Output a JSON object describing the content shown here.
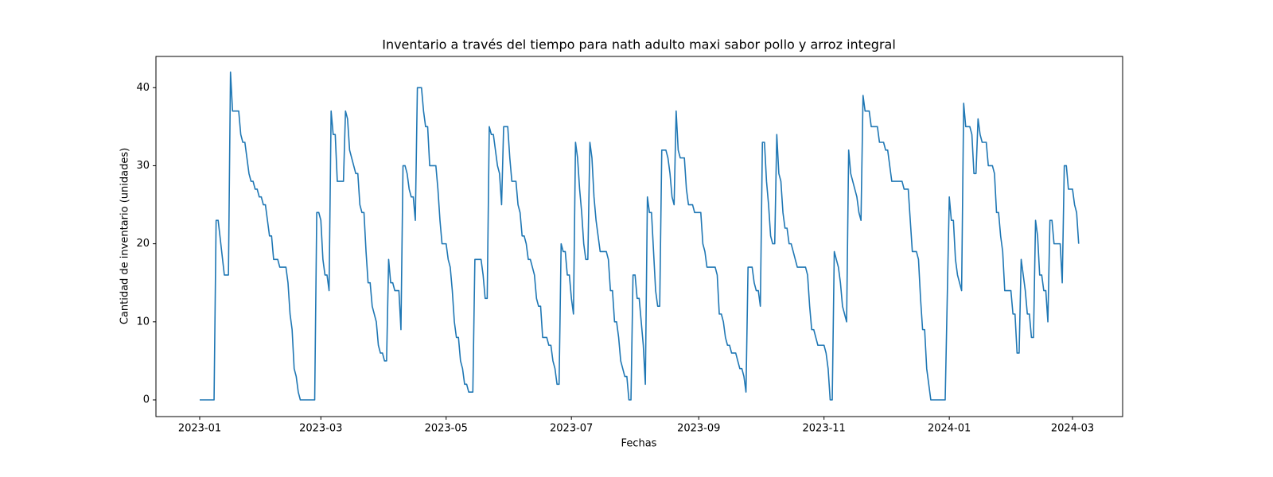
{
  "chart_data": {
    "type": "line",
    "title": "Inventario a través del tiempo para nath adulto maxi sabor pollo y arroz integral",
    "x_label": "Fechas",
    "y_label": "Cantidad de inventario (unidades)",
    "xlim": [
      -21.3,
      449.4
    ],
    "ylim": [
      -2.14,
      44.0
    ],
    "xticks": [
      {
        "value": 0,
        "label": "2023-01"
      },
      {
        "value": 59,
        "label": "2023-03"
      },
      {
        "value": 120,
        "label": "2023-05"
      },
      {
        "value": 181,
        "label": "2023-07"
      },
      {
        "value": 243,
        "label": "2023-09"
      },
      {
        "value": 304,
        "label": "2023-11"
      },
      {
        "value": 365,
        "label": "2024-01"
      },
      {
        "value": 425,
        "label": "2024-03"
      }
    ],
    "yticks": [
      0,
      10,
      20,
      30,
      40
    ],
    "grid": false,
    "x": [
      0,
      7,
      8,
      9,
      12,
      14,
      15,
      16,
      19,
      20,
      21,
      22,
      24,
      25,
      26,
      27,
      28,
      29,
      30,
      31,
      32,
      34,
      35,
      36,
      38,
      39,
      42,
      43,
      44,
      45,
      46,
      47,
      48,
      49,
      56,
      57,
      58,
      59,
      60,
      61,
      62,
      63,
      64,
      65,
      66,
      67,
      70,
      71,
      72,
      73,
      75,
      76,
      77,
      78,
      79,
      80,
      81,
      82,
      83,
      84,
      86,
      87,
      88,
      89,
      90,
      91,
      92,
      93,
      94,
      95,
      97,
      98,
      99,
      100,
      101,
      102,
      103,
      104,
      105,
      106,
      108,
      109,
      110,
      111,
      112,
      115,
      116,
      117,
      118,
      120,
      121,
      122,
      123,
      124,
      125,
      126,
      127,
      128,
      129,
      130,
      131,
      133,
      134,
      137,
      138,
      139,
      140,
      141,
      142,
      143,
      145,
      146,
      147,
      148,
      150,
      151,
      152,
      154,
      155,
      156,
      157,
      158,
      159,
      160,
      161,
      162,
      163,
      164,
      165,
      166,
      167,
      169,
      170,
      171,
      172,
      173,
      174,
      175,
      176,
      177,
      178,
      179,
      180,
      181,
      182,
      183,
      184,
      185,
      186,
      187,
      188,
      189,
      190,
      191,
      192,
      193,
      194,
      195,
      198,
      199,
      200,
      201,
      202,
      203,
      204,
      205,
      206,
      207,
      208,
      209,
      210,
      211,
      212,
      213,
      214,
      215,
      216,
      217,
      218,
      219,
      220,
      221,
      222,
      223,
      224,
      225,
      227,
      228,
      229,
      230,
      231,
      232,
      233,
      234,
      236,
      237,
      238,
      240,
      241,
      244,
      245,
      246,
      247,
      251,
      252,
      253,
      254,
      255,
      256,
      257,
      258,
      259,
      261,
      262,
      263,
      264,
      265,
      266,
      267,
      269,
      270,
      271,
      272,
      273,
      274,
      275,
      276,
      277,
      278,
      279,
      280,
      281,
      282,
      283,
      284,
      285,
      286,
      287,
      288,
      289,
      290,
      291,
      295,
      296,
      297,
      298,
      299,
      300,
      301,
      304,
      305,
      306,
      307,
      308,
      309,
      310,
      311,
      312,
      313,
      315,
      316,
      317,
      319,
      320,
      321,
      322,
      323,
      324,
      326,
      327,
      330,
      331,
      333,
      334,
      335,
      336,
      337,
      342,
      343,
      345,
      346,
      347,
      349,
      350,
      351,
      352,
      353,
      354,
      356,
      363,
      365,
      366,
      367,
      368,
      369,
      371,
      372,
      373,
      375,
      376,
      377,
      378,
      379,
      380,
      381,
      383,
      384,
      386,
      387,
      388,
      389,
      390,
      391,
      392,
      395,
      396,
      397,
      398,
      399,
      400,
      401,
      402,
      403,
      404,
      405,
      406,
      407,
      408,
      409,
      410,
      411,
      412,
      413,
      414,
      415,
      416,
      419,
      420,
      421,
      422,
      423,
      425,
      426,
      427,
      428
    ],
    "series": [
      {
        "color": "#1f77b4",
        "values": [
          0,
          0,
          23,
          23,
          16,
          16,
          42,
          37,
          37,
          34,
          33,
          33,
          29,
          28,
          28,
          27,
          27,
          26,
          26,
          25,
          25,
          21,
          21,
          18,
          18,
          17,
          17,
          15,
          11,
          9,
          4,
          3,
          1,
          0,
          0,
          24,
          24,
          23,
          18,
          16,
          16,
          14,
          37,
          34,
          34,
          28,
          28,
          37,
          36,
          32,
          30,
          29,
          29,
          25,
          24,
          24,
          19,
          15,
          15,
          12,
          10,
          7,
          6,
          6,
          5,
          5,
          18,
          15,
          15,
          14,
          14,
          9,
          30,
          30,
          29,
          27,
          26,
          26,
          23,
          40,
          40,
          37,
          35,
          35,
          30,
          30,
          27,
          23,
          20,
          20,
          18,
          17,
          14,
          10,
          8,
          8,
          5,
          4,
          2,
          2,
          1,
          1,
          18,
          18,
          16,
          13,
          13,
          35,
          34,
          34,
          30,
          29,
          25,
          35,
          35,
          31,
          28,
          28,
          25,
          24,
          21,
          21,
          20,
          18,
          18,
          17,
          16,
          13,
          12,
          12,
          8,
          8,
          7,
          7,
          5,
          4,
          2,
          2,
          20,
          19,
          19,
          16,
          16,
          13,
          11,
          33,
          31,
          27,
          24,
          20,
          18,
          18,
          33,
          31,
          26,
          23,
          21,
          19,
          19,
          18,
          14,
          14,
          10,
          10,
          8,
          5,
          4,
          3,
          3,
          0,
          0,
          16,
          16,
          13,
          13,
          10,
          7,
          2,
          26,
          24,
          24,
          19,
          14,
          12,
          12,
          32,
          32,
          31,
          29,
          26,
          25,
          37,
          32,
          31,
          31,
          27,
          25,
          25,
          24,
          24,
          20,
          19,
          17,
          17,
          16,
          11,
          11,
          10,
          8,
          7,
          7,
          6,
          6,
          5,
          4,
          4,
          3,
          1,
          17,
          17,
          15,
          14,
          14,
          12,
          33,
          33,
          28,
          25,
          21,
          20,
          20,
          34,
          29,
          28,
          24,
          22,
          22,
          20,
          20,
          19,
          18,
          17,
          17,
          16,
          12,
          9,
          9,
          8,
          7,
          7,
          6,
          4,
          0,
          0,
          19,
          18,
          17,
          15,
          12,
          10,
          32,
          29,
          27,
          26,
          24,
          23,
          39,
          37,
          37,
          35,
          35,
          33,
          33,
          32,
          32,
          30,
          28,
          28,
          27,
          27,
          23,
          19,
          19,
          18,
          13,
          9,
          9,
          4,
          0,
          0,
          26,
          23,
          23,
          18,
          16,
          14,
          38,
          35,
          35,
          34,
          29,
          29,
          36,
          34,
          33,
          33,
          30,
          30,
          29,
          24,
          24,
          21,
          19,
          14,
          14,
          11,
          11,
          6,
          6,
          18,
          16,
          14,
          11,
          11,
          8,
          8,
          23,
          21,
          16,
          16,
          14,
          14,
          10,
          23,
          23,
          20,
          20,
          15,
          30,
          30,
          27,
          27,
          25,
          24,
          20
        ]
      }
    ]
  }
}
